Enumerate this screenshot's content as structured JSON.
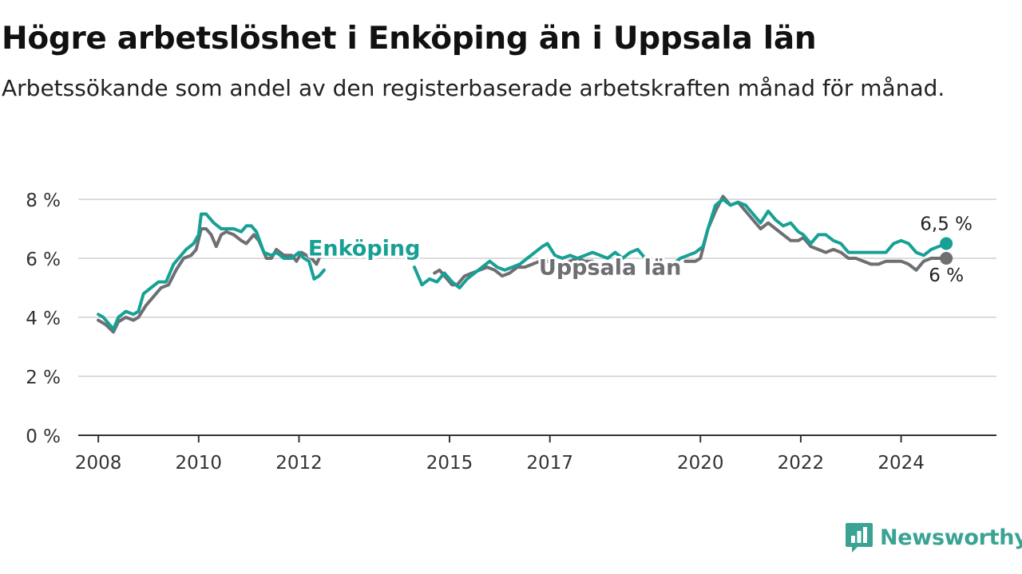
{
  "header": {
    "title": "Högre arbetslöshet i Enköping än i Uppsala län",
    "subtitle": "Arbetssökande som andel av den registerbaserade arbetskraften månad för månad."
  },
  "brand": {
    "name": "Newsworthy",
    "color": "#3aa393",
    "icon": "bar-chart-badge-icon"
  },
  "chart_data": {
    "type": "line",
    "title": "Högre arbetslöshet i Enköping än i Uppsala län",
    "subtitle": "Arbetssökande som andel av den registerbaserade arbetskraften månad för månad.",
    "xlabel": "",
    "ylabel": "",
    "xlim": [
      2007.6,
      2025.9
    ],
    "ylim": [
      0,
      8
    ],
    "y_ticks": [
      0,
      2,
      4,
      6,
      8
    ],
    "y_tick_labels": [
      "0 %",
      "2 %",
      "4 %",
      "6 %",
      "8 %"
    ],
    "x_ticks": [
      2008,
      2010,
      2012,
      2015,
      2017,
      2020,
      2022,
      2024
    ],
    "x_tick_labels": [
      "2008",
      "2010",
      "2012",
      "2015",
      "2017",
      "2020",
      "2022",
      "2024"
    ],
    "grid": "horizontal",
    "series": [
      {
        "name": "Uppsala län",
        "color": "#6e6e73",
        "end_label": "6 %",
        "points": [
          [
            2008.0,
            3.9
          ],
          [
            2008.15,
            3.75
          ],
          [
            2008.3,
            3.5
          ],
          [
            2008.4,
            3.85
          ],
          [
            2008.55,
            4.0
          ],
          [
            2008.7,
            3.9
          ],
          [
            2008.8,
            4.0
          ],
          [
            2008.95,
            4.4
          ],
          [
            2009.1,
            4.7
          ],
          [
            2009.25,
            5.0
          ],
          [
            2009.4,
            5.1
          ],
          [
            2009.55,
            5.6
          ],
          [
            2009.7,
            6.0
          ],
          [
            2009.85,
            6.1
          ],
          [
            2009.95,
            6.3
          ],
          [
            2010.05,
            7.0
          ],
          [
            2010.15,
            7.0
          ],
          [
            2010.25,
            6.8
          ],
          [
            2010.35,
            6.4
          ],
          [
            2010.45,
            6.8
          ],
          [
            2010.55,
            6.9
          ],
          [
            2010.7,
            6.8
          ],
          [
            2010.85,
            6.6
          ],
          [
            2010.95,
            6.5
          ],
          [
            2011.1,
            6.8
          ],
          [
            2011.2,
            6.6
          ],
          [
            2011.35,
            6.0
          ],
          [
            2011.45,
            6.0
          ],
          [
            2011.55,
            6.3
          ],
          [
            2011.7,
            6.1
          ],
          [
            2011.85,
            6.1
          ],
          [
            2011.95,
            5.9
          ],
          [
            2012.05,
            6.2
          ],
          [
            2012.15,
            6.1
          ],
          [
            2012.25,
            6.0
          ],
          [
            2012.35,
            5.8
          ],
          [
            2012.45,
            6.2
          ],
          null,
          [
            2014.7,
            5.5
          ],
          [
            2014.8,
            5.6
          ],
          [
            2014.95,
            5.3
          ],
          [
            2015.05,
            5.1
          ],
          [
            2015.15,
            5.1
          ],
          [
            2015.3,
            5.4
          ],
          [
            2015.45,
            5.5
          ],
          [
            2015.6,
            5.6
          ],
          [
            2015.75,
            5.7
          ],
          [
            2015.9,
            5.6
          ],
          [
            2016.05,
            5.4
          ],
          [
            2016.2,
            5.5
          ],
          [
            2016.35,
            5.7
          ],
          [
            2016.5,
            5.7
          ],
          [
            2016.65,
            5.8
          ],
          [
            2016.8,
            5.9
          ],
          [
            2016.95,
            5.9
          ],
          [
            2017.1,
            5.8
          ],
          [
            2017.25,
            5.8
          ],
          [
            2017.4,
            5.9
          ],
          [
            2017.55,
            6.0
          ],
          [
            2017.7,
            5.9
          ],
          [
            2017.85,
            5.9
          ],
          null,
          [
            2019.7,
            5.9
          ],
          [
            2019.9,
            5.9
          ],
          [
            2020.0,
            6.0
          ],
          [
            2020.15,
            7.0
          ],
          [
            2020.3,
            7.6
          ],
          [
            2020.45,
            8.1
          ],
          [
            2020.6,
            7.8
          ],
          [
            2020.75,
            7.9
          ],
          [
            2020.9,
            7.6
          ],
          [
            2021.05,
            7.3
          ],
          [
            2021.2,
            7.0
          ],
          [
            2021.35,
            7.2
          ],
          [
            2021.5,
            7.0
          ],
          [
            2021.65,
            6.8
          ],
          [
            2021.8,
            6.6
          ],
          [
            2021.95,
            6.6
          ],
          [
            2022.05,
            6.7
          ],
          [
            2022.2,
            6.4
          ],
          [
            2022.35,
            6.3
          ],
          [
            2022.5,
            6.2
          ],
          [
            2022.65,
            6.3
          ],
          [
            2022.8,
            6.2
          ],
          [
            2022.95,
            6.0
          ],
          [
            2023.1,
            6.0
          ],
          [
            2023.25,
            5.9
          ],
          [
            2023.4,
            5.8
          ],
          [
            2023.55,
            5.8
          ],
          [
            2023.7,
            5.9
          ],
          [
            2023.85,
            5.9
          ],
          [
            2024.0,
            5.9
          ],
          [
            2024.15,
            5.8
          ],
          [
            2024.3,
            5.6
          ],
          [
            2024.45,
            5.9
          ],
          [
            2024.6,
            6.0
          ],
          [
            2024.75,
            6.0
          ],
          [
            2024.9,
            6.0
          ]
        ]
      },
      {
        "name": "Enköping",
        "color": "#17a095",
        "end_label": "6,5 %",
        "points": [
          [
            2008.0,
            4.1
          ],
          [
            2008.1,
            4.0
          ],
          [
            2008.2,
            3.8
          ],
          [
            2008.3,
            3.6
          ],
          [
            2008.4,
            4.0
          ],
          [
            2008.55,
            4.2
          ],
          [
            2008.7,
            4.1
          ],
          [
            2008.8,
            4.2
          ],
          [
            2008.9,
            4.8
          ],
          [
            2009.05,
            5.0
          ],
          [
            2009.2,
            5.2
          ],
          [
            2009.35,
            5.2
          ],
          [
            2009.5,
            5.8
          ],
          [
            2009.6,
            6.0
          ],
          [
            2009.75,
            6.3
          ],
          [
            2009.9,
            6.5
          ],
          [
            2010.0,
            6.8
          ],
          [
            2010.05,
            7.5
          ],
          [
            2010.15,
            7.5
          ],
          [
            2010.3,
            7.2
          ],
          [
            2010.45,
            7.0
          ],
          [
            2010.6,
            7.0
          ],
          [
            2010.7,
            7.0
          ],
          [
            2010.85,
            6.9
          ],
          [
            2010.95,
            7.1
          ],
          [
            2011.05,
            7.1
          ],
          [
            2011.15,
            6.9
          ],
          [
            2011.3,
            6.2
          ],
          [
            2011.45,
            6.1
          ],
          [
            2011.55,
            6.2
          ],
          [
            2011.7,
            6.0
          ],
          [
            2011.85,
            6.0
          ],
          [
            2012.0,
            6.2
          ],
          [
            2012.1,
            6.0
          ],
          [
            2012.2,
            5.9
          ],
          [
            2012.3,
            5.3
          ],
          [
            2012.4,
            5.4
          ],
          [
            2012.5,
            5.6
          ],
          null,
          [
            2014.3,
            5.7
          ],
          [
            2014.45,
            5.1
          ],
          [
            2014.6,
            5.3
          ],
          [
            2014.75,
            5.2
          ],
          [
            2014.9,
            5.5
          ],
          [
            2015.05,
            5.2
          ],
          [
            2015.2,
            5.0
          ],
          [
            2015.35,
            5.3
          ],
          [
            2015.5,
            5.5
          ],
          [
            2015.65,
            5.7
          ],
          [
            2015.8,
            5.9
          ],
          [
            2015.95,
            5.7
          ],
          [
            2016.1,
            5.6
          ],
          [
            2016.25,
            5.7
          ],
          [
            2016.4,
            5.8
          ],
          [
            2016.55,
            6.0
          ],
          [
            2016.7,
            6.2
          ],
          [
            2016.85,
            6.4
          ],
          [
            2016.95,
            6.5
          ],
          [
            2017.1,
            6.1
          ],
          [
            2017.25,
            6.0
          ],
          [
            2017.4,
            6.1
          ],
          [
            2017.55,
            6.0
          ],
          [
            2017.7,
            6.1
          ],
          [
            2017.85,
            6.2
          ],
          [
            2018.0,
            6.1
          ],
          [
            2018.15,
            6.0
          ],
          [
            2018.3,
            6.2
          ],
          [
            2018.45,
            6.0
          ],
          [
            2018.6,
            6.2
          ],
          [
            2018.75,
            6.3
          ],
          [
            2018.9,
            6.0
          ],
          null,
          [
            2019.45,
            5.8
          ],
          [
            2019.6,
            6.0
          ],
          [
            2019.75,
            6.1
          ],
          [
            2019.9,
            6.2
          ],
          [
            2020.05,
            6.4
          ],
          [
            2020.15,
            7.0
          ],
          [
            2020.3,
            7.8
          ],
          [
            2020.45,
            8.0
          ],
          [
            2020.6,
            7.8
          ],
          [
            2020.75,
            7.9
          ],
          [
            2020.9,
            7.8
          ],
          [
            2021.05,
            7.5
          ],
          [
            2021.2,
            7.2
          ],
          [
            2021.35,
            7.6
          ],
          [
            2021.5,
            7.3
          ],
          [
            2021.65,
            7.1
          ],
          [
            2021.8,
            7.2
          ],
          [
            2021.95,
            6.9
          ],
          [
            2022.05,
            6.8
          ],
          [
            2022.2,
            6.5
          ],
          [
            2022.35,
            6.8
          ],
          [
            2022.5,
            6.8
          ],
          [
            2022.65,
            6.6
          ],
          [
            2022.8,
            6.5
          ],
          [
            2022.95,
            6.2
          ],
          [
            2023.1,
            6.2
          ],
          [
            2023.3,
            6.2
          ],
          [
            2023.5,
            6.2
          ],
          [
            2023.7,
            6.2
          ],
          [
            2023.85,
            6.5
          ],
          [
            2024.0,
            6.6
          ],
          [
            2024.15,
            6.5
          ],
          [
            2024.3,
            6.2
          ],
          [
            2024.45,
            6.1
          ],
          [
            2024.6,
            6.3
          ],
          [
            2024.75,
            6.4
          ],
          [
            2024.9,
            6.5
          ]
        ]
      }
    ],
    "inline_labels": [
      {
        "series": "Enköping",
        "text": "Enköping",
        "x": 2013.3,
        "y": 6.1
      },
      {
        "series": "Uppsala län",
        "text": "Uppsala län",
        "x": 2018.2,
        "y": 5.45
      }
    ]
  }
}
